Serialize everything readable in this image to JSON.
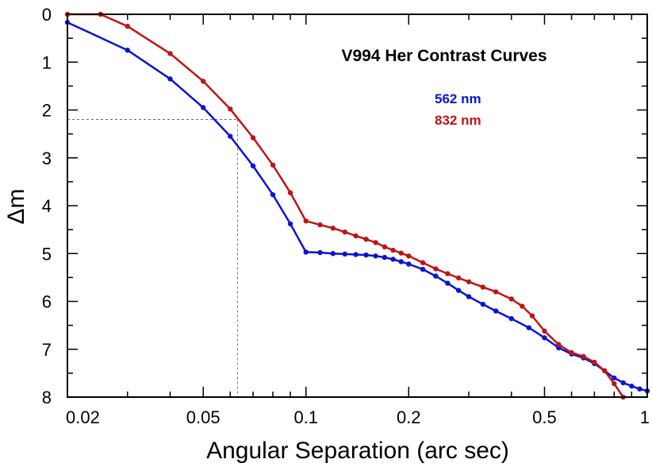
{
  "chart_data": {
    "type": "line",
    "title": "V994 Her Contrast Curves",
    "xlabel": "Angular Separation (arc sec)",
    "ylabel": "Δm",
    "x_scale": "log",
    "xlim": [
      0.02,
      1.0
    ],
    "ylim": [
      8,
      0
    ],
    "y_inverted": true,
    "x_ticks": [
      {
        "value": 0.02,
        "label": "0.02"
      },
      {
        "value": 0.05,
        "label": "0.05"
      },
      {
        "value": 0.1,
        "label": "0.1"
      },
      {
        "value": 0.2,
        "label": "0.2"
      },
      {
        "value": 0.5,
        "label": "0.5"
      },
      {
        "value": 1.0,
        "label": "1"
      }
    ],
    "y_ticks": [
      0,
      1,
      2,
      3,
      4,
      5,
      6,
      7,
      8
    ],
    "y_tick_labels": [
      "0",
      "1",
      "2",
      "3",
      "4",
      "5",
      "6",
      "7",
      "8"
    ],
    "legend_position": "upper-right",
    "reference_point": {
      "x": 0.063,
      "y": 2.2
    },
    "series": [
      {
        "name": "562 nm",
        "color": "#0a14d2",
        "x": [
          0.02,
          0.03,
          0.04,
          0.05,
          0.06,
          0.07,
          0.08,
          0.09,
          0.1,
          0.11,
          0.12,
          0.13,
          0.14,
          0.15,
          0.16,
          0.17,
          0.18,
          0.19,
          0.2,
          0.22,
          0.24,
          0.26,
          0.28,
          0.3,
          0.33,
          0.36,
          0.4,
          0.45,
          0.5,
          0.55,
          0.6,
          0.65,
          0.7,
          0.75,
          0.8,
          0.85,
          0.9,
          0.95,
          1.0
        ],
        "values": [
          0.17,
          0.75,
          1.35,
          1.95,
          2.55,
          3.17,
          3.77,
          4.38,
          4.97,
          4.98,
          5.0,
          5.01,
          5.02,
          5.03,
          5.05,
          5.08,
          5.12,
          5.17,
          5.22,
          5.33,
          5.47,
          5.62,
          5.77,
          5.9,
          6.06,
          6.2,
          6.36,
          6.55,
          6.76,
          6.97,
          7.1,
          7.18,
          7.3,
          7.45,
          7.6,
          7.7,
          7.77,
          7.83,
          7.87
        ]
      },
      {
        "name": "832 nm",
        "color": "#c01414",
        "x": [
          0.02,
          0.025,
          0.03,
          0.04,
          0.05,
          0.06,
          0.07,
          0.08,
          0.09,
          0.1,
          0.11,
          0.12,
          0.13,
          0.14,
          0.15,
          0.16,
          0.17,
          0.18,
          0.19,
          0.2,
          0.22,
          0.24,
          0.26,
          0.28,
          0.3,
          0.33,
          0.36,
          0.4,
          0.43,
          0.46,
          0.5,
          0.55,
          0.6,
          0.65,
          0.7,
          0.75,
          0.8,
          0.85
        ],
        "values": [
          0.0,
          0.0,
          0.25,
          0.82,
          1.4,
          1.98,
          2.58,
          3.15,
          3.73,
          4.32,
          4.4,
          4.47,
          4.55,
          4.63,
          4.7,
          4.77,
          4.86,
          4.93,
          4.99,
          5.05,
          5.19,
          5.32,
          5.42,
          5.51,
          5.59,
          5.7,
          5.8,
          5.95,
          6.1,
          6.3,
          6.62,
          6.9,
          7.07,
          7.15,
          7.27,
          7.45,
          7.72,
          8.0
        ]
      }
    ]
  }
}
